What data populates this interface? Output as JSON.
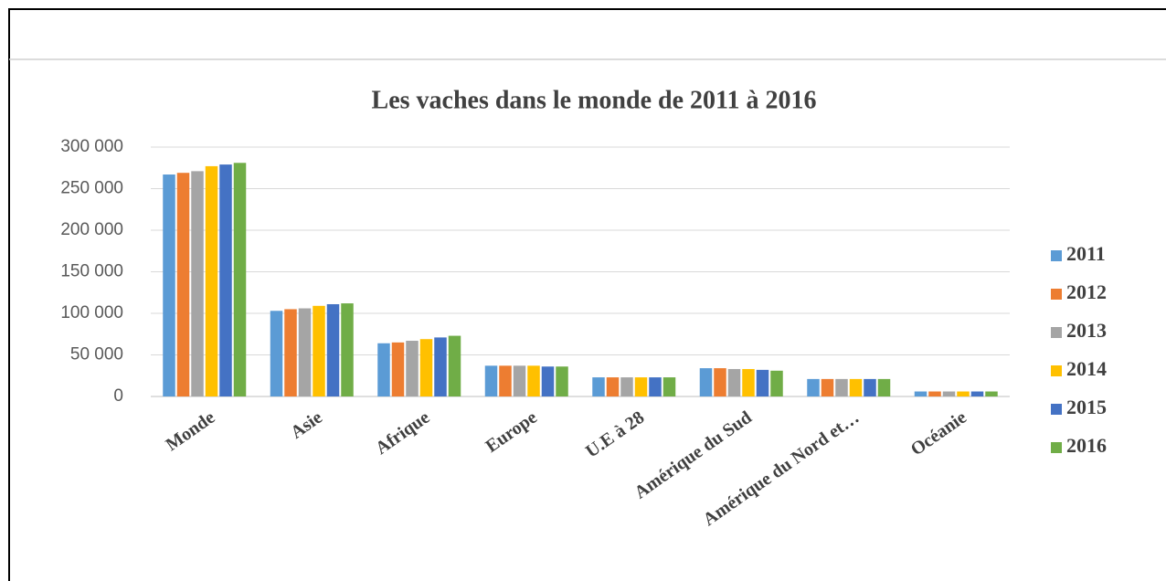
{
  "chart_data": {
    "type": "bar",
    "title": "Les vaches dans le monde de 2011 à 2016",
    "categories": [
      "Monde",
      "Asie",
      "Afrique",
      "Europe",
      "U.E à 28",
      "Amérique du Sud",
      "Amérique du Nord et…",
      "Océanie"
    ],
    "series": [
      {
        "name": "2011",
        "color": "#5b9bd5",
        "values": [
          267000,
          103000,
          64000,
          37000,
          23000,
          34000,
          21000,
          6000
        ]
      },
      {
        "name": "2012",
        "color": "#ed7d31",
        "values": [
          269000,
          105000,
          65000,
          37000,
          23000,
          34000,
          21000,
          6000
        ]
      },
      {
        "name": "2013",
        "color": "#a5a5a5",
        "values": [
          271000,
          106000,
          67000,
          37000,
          23000,
          33000,
          21000,
          6000
        ]
      },
      {
        "name": "2014",
        "color": "#ffc000",
        "values": [
          277000,
          109000,
          69000,
          37000,
          23000,
          33000,
          21000,
          6000
        ]
      },
      {
        "name": "2015",
        "color": "#4472c4",
        "values": [
          279000,
          111000,
          71000,
          36000,
          23000,
          32000,
          21000,
          6000
        ]
      },
      {
        "name": "2016",
        "color": "#70ad47",
        "values": [
          281000,
          112000,
          73000,
          36000,
          23000,
          31000,
          21000,
          6000
        ]
      }
    ],
    "ylim": [
      0,
      300000
    ],
    "yticks": [
      0,
      {
        "value": 50000,
        "label": "50 000"
      },
      {
        "value": 100000,
        "label": "100 000"
      },
      {
        "value": 150000,
        "label": "150 000"
      },
      {
        "value": 200000,
        "label": "200 000"
      },
      {
        "value": 250000,
        "label": "250 000"
      },
      {
        "value": 300000,
        "label": "300 000"
      }
    ],
    "grid": true,
    "legend": "right"
  }
}
